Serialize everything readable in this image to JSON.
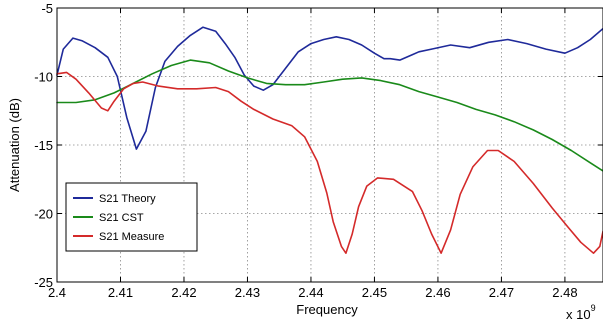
{
  "chart_data": {
    "type": "line",
    "title": "",
    "xlabel": "Frequency",
    "ylabel": "Attenuation (dB)",
    "x_exponent_label": "x 10",
    "x_exponent_power": "9",
    "xlim": [
      2.4,
      2.486
    ],
    "ylim": [
      -25,
      -5
    ],
    "x_ticks": [
      "2.4",
      "2.41",
      "2.42",
      "2.43",
      "2.44",
      "2.45",
      "2.46",
      "2.47",
      "2.48"
    ],
    "y_ticks": [
      "-5",
      "-10",
      "-15",
      "-20",
      "-25"
    ],
    "x_tick_values": [
      2.4,
      2.41,
      2.42,
      2.43,
      2.44,
      2.45,
      2.46,
      2.47,
      2.48
    ],
    "y_tick_values": [
      -5,
      -10,
      -15,
      -20,
      -25
    ],
    "grid": true,
    "legend_position": "bottom-left",
    "series": [
      {
        "name": "S21 Theory",
        "color": "#1f2a9a",
        "points": [
          [
            2.4,
            -9.9
          ],
          [
            2.401,
            -8.0
          ],
          [
            2.4025,
            -7.2
          ],
          [
            2.404,
            -7.4
          ],
          [
            2.406,
            -7.9
          ],
          [
            2.408,
            -8.6
          ],
          [
            2.4095,
            -10.0
          ],
          [
            2.411,
            -13.0
          ],
          [
            2.4125,
            -15.3
          ],
          [
            2.414,
            -14.0
          ],
          [
            2.4155,
            -10.8
          ],
          [
            2.417,
            -8.9
          ],
          [
            2.419,
            -7.8
          ],
          [
            2.421,
            -7.0
          ],
          [
            2.423,
            -6.4
          ],
          [
            2.425,
            -6.7
          ],
          [
            2.4265,
            -7.6
          ],
          [
            2.428,
            -8.6
          ],
          [
            2.4295,
            -9.9
          ],
          [
            2.431,
            -10.7
          ],
          [
            2.4325,
            -11.0
          ],
          [
            2.434,
            -10.6
          ],
          [
            2.436,
            -9.4
          ],
          [
            2.438,
            -8.2
          ],
          [
            2.44,
            -7.6
          ],
          [
            2.442,
            -7.3
          ],
          [
            2.444,
            -7.1
          ],
          [
            2.446,
            -7.3
          ],
          [
            2.448,
            -7.7
          ],
          [
            2.45,
            -8.3
          ],
          [
            2.4515,
            -8.7
          ],
          [
            2.4525,
            -8.7
          ],
          [
            2.454,
            -8.8
          ],
          [
            2.456,
            -8.4
          ],
          [
            2.457,
            -8.2
          ],
          [
            2.459,
            -8.0
          ],
          [
            2.462,
            -7.7
          ],
          [
            2.465,
            -7.9
          ],
          [
            2.468,
            -7.5
          ],
          [
            2.471,
            -7.3
          ],
          [
            2.474,
            -7.6
          ],
          [
            2.477,
            -8.0
          ],
          [
            2.48,
            -8.3
          ],
          [
            2.482,
            -7.9
          ],
          [
            2.484,
            -7.3
          ],
          [
            2.486,
            -6.5
          ]
        ]
      },
      {
        "name": "S21 CST",
        "color": "#1a8a1a",
        "points": [
          [
            2.4,
            -11.9
          ],
          [
            2.403,
            -11.9
          ],
          [
            2.406,
            -11.7
          ],
          [
            2.409,
            -11.2
          ],
          [
            2.412,
            -10.5
          ],
          [
            2.415,
            -9.8
          ],
          [
            2.418,
            -9.2
          ],
          [
            2.421,
            -8.8
          ],
          [
            2.424,
            -9.0
          ],
          [
            2.427,
            -9.6
          ],
          [
            2.43,
            -10.1
          ],
          [
            2.433,
            -10.5
          ],
          [
            2.436,
            -10.6
          ],
          [
            2.439,
            -10.6
          ],
          [
            2.442,
            -10.4
          ],
          [
            2.445,
            -10.2
          ],
          [
            2.448,
            -10.1
          ],
          [
            2.451,
            -10.3
          ],
          [
            2.454,
            -10.6
          ],
          [
            2.457,
            -11.1
          ],
          [
            2.46,
            -11.5
          ],
          [
            2.463,
            -11.9
          ],
          [
            2.466,
            -12.4
          ],
          [
            2.469,
            -12.8
          ],
          [
            2.472,
            -13.3
          ],
          [
            2.475,
            -13.9
          ],
          [
            2.478,
            -14.6
          ],
          [
            2.481,
            -15.4
          ],
          [
            2.484,
            -16.3
          ],
          [
            2.486,
            -16.9
          ]
        ]
      },
      {
        "name": "S21 Measure",
        "color": "#d42a2a",
        "points": [
          [
            2.4,
            -9.8
          ],
          [
            2.4015,
            -9.7
          ],
          [
            2.403,
            -10.2
          ],
          [
            2.405,
            -11.2
          ],
          [
            2.407,
            -12.3
          ],
          [
            2.408,
            -12.5
          ],
          [
            2.409,
            -11.8
          ],
          [
            2.4105,
            -10.9
          ],
          [
            2.412,
            -10.5
          ],
          [
            2.4135,
            -10.4
          ],
          [
            2.416,
            -10.7
          ],
          [
            2.419,
            -10.9
          ],
          [
            2.422,
            -10.9
          ],
          [
            2.425,
            -10.8
          ],
          [
            2.427,
            -11.1
          ],
          [
            2.429,
            -11.8
          ],
          [
            2.431,
            -12.4
          ],
          [
            2.434,
            -13.1
          ],
          [
            2.437,
            -13.6
          ],
          [
            2.439,
            -14.4
          ],
          [
            2.441,
            -16.2
          ],
          [
            2.4425,
            -18.5
          ],
          [
            2.4435,
            -20.6
          ],
          [
            2.4448,
            -22.4
          ],
          [
            2.4455,
            -22.9
          ],
          [
            2.4465,
            -21.5
          ],
          [
            2.4475,
            -19.5
          ],
          [
            2.4488,
            -18.0
          ],
          [
            2.4505,
            -17.4
          ],
          [
            2.453,
            -17.5
          ],
          [
            2.456,
            -18.4
          ],
          [
            2.4575,
            -19.8
          ],
          [
            2.459,
            -21.5
          ],
          [
            2.4605,
            -22.9
          ],
          [
            2.462,
            -21.2
          ],
          [
            2.4635,
            -18.6
          ],
          [
            2.4655,
            -16.6
          ],
          [
            2.4678,
            -15.4
          ],
          [
            2.4695,
            -15.4
          ],
          [
            2.472,
            -16.2
          ],
          [
            2.475,
            -17.8
          ],
          [
            2.478,
            -19.6
          ],
          [
            2.4805,
            -21.0
          ],
          [
            2.4825,
            -22.1
          ],
          [
            2.4845,
            -22.9
          ],
          [
            2.4855,
            -22.4
          ],
          [
            2.486,
            -21.3
          ]
        ]
      }
    ]
  }
}
